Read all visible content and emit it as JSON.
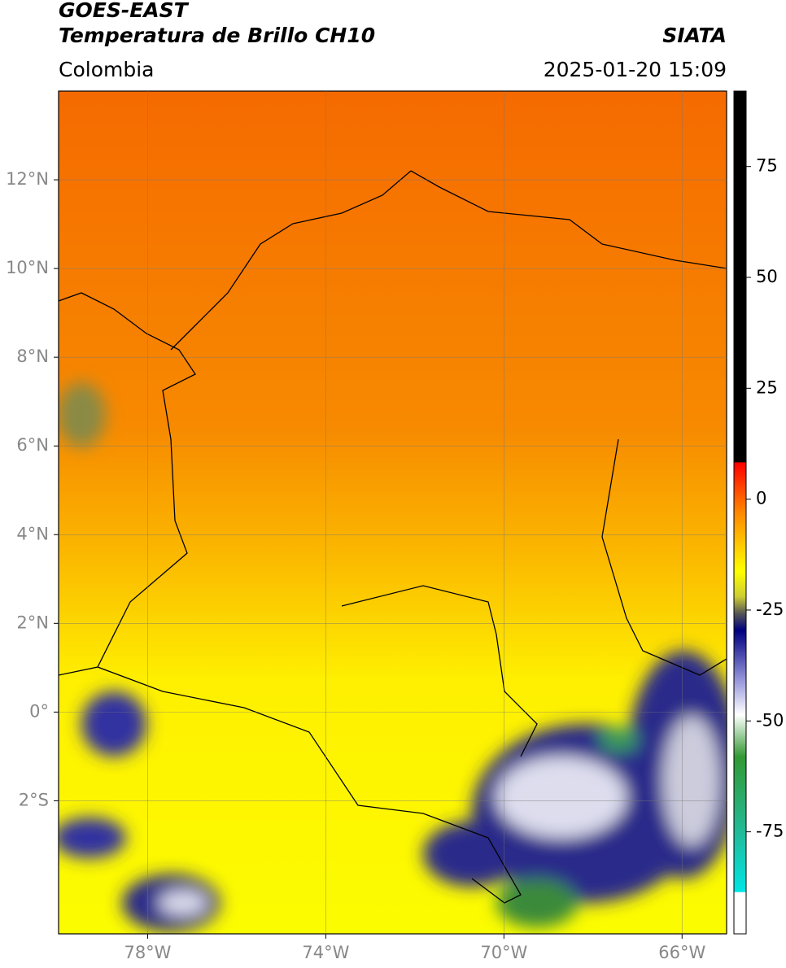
{
  "header": {
    "source": "GOES-EAST",
    "product": "Temperatura de Brillo CH10",
    "agency": "SIATA",
    "region": "Colombia",
    "datetime": "2025-01-20 15:09"
  },
  "map": {
    "xlim": [
      -80,
      -65
    ],
    "ylim": [
      -5,
      14
    ],
    "xticks": [
      {
        "value": -78,
        "label": "78°W"
      },
      {
        "value": -74,
        "label": "74°W"
      },
      {
        "value": -70,
        "label": "70°W"
      },
      {
        "value": -66,
        "label": "66°W"
      }
    ],
    "yticks": [
      {
        "value": 12,
        "label": "12°N"
      },
      {
        "value": 10,
        "label": "10°N"
      },
      {
        "value": 8,
        "label": "8°N"
      },
      {
        "value": 6,
        "label": "6°N"
      },
      {
        "value": 4,
        "label": "4°N"
      },
      {
        "value": 2,
        "label": "2°N"
      },
      {
        "value": 0,
        "label": "0°"
      },
      {
        "value": -2,
        "label": "2°S"
      }
    ],
    "grid": true
  },
  "colorbar": {
    "lim": [
      -98,
      92
    ],
    "ticks": [
      75,
      50,
      25,
      0,
      -25,
      -50,
      -75
    ]
  }
}
